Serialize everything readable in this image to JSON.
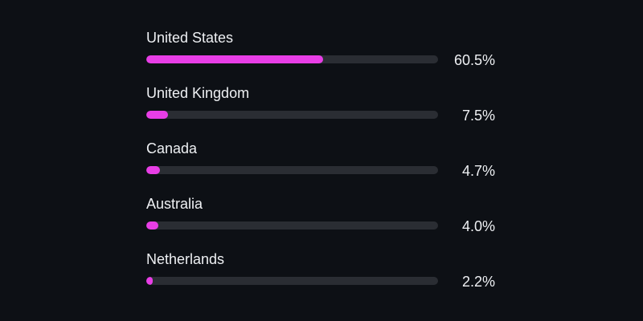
{
  "accent_color": "#e83ee6",
  "track_color": "#2a2d33",
  "countries": [
    {
      "name": "United States",
      "value_label": "60.5%",
      "fraction": 0.605
    },
    {
      "name": "United Kingdom",
      "value_label": "7.5%",
      "fraction": 0.075
    },
    {
      "name": "Canada",
      "value_label": "4.7%",
      "fraction": 0.047
    },
    {
      "name": "Australia",
      "value_label": "4.0%",
      "fraction": 0.04
    },
    {
      "name": "Netherlands",
      "value_label": "2.2%",
      "fraction": 0.022
    }
  ]
}
